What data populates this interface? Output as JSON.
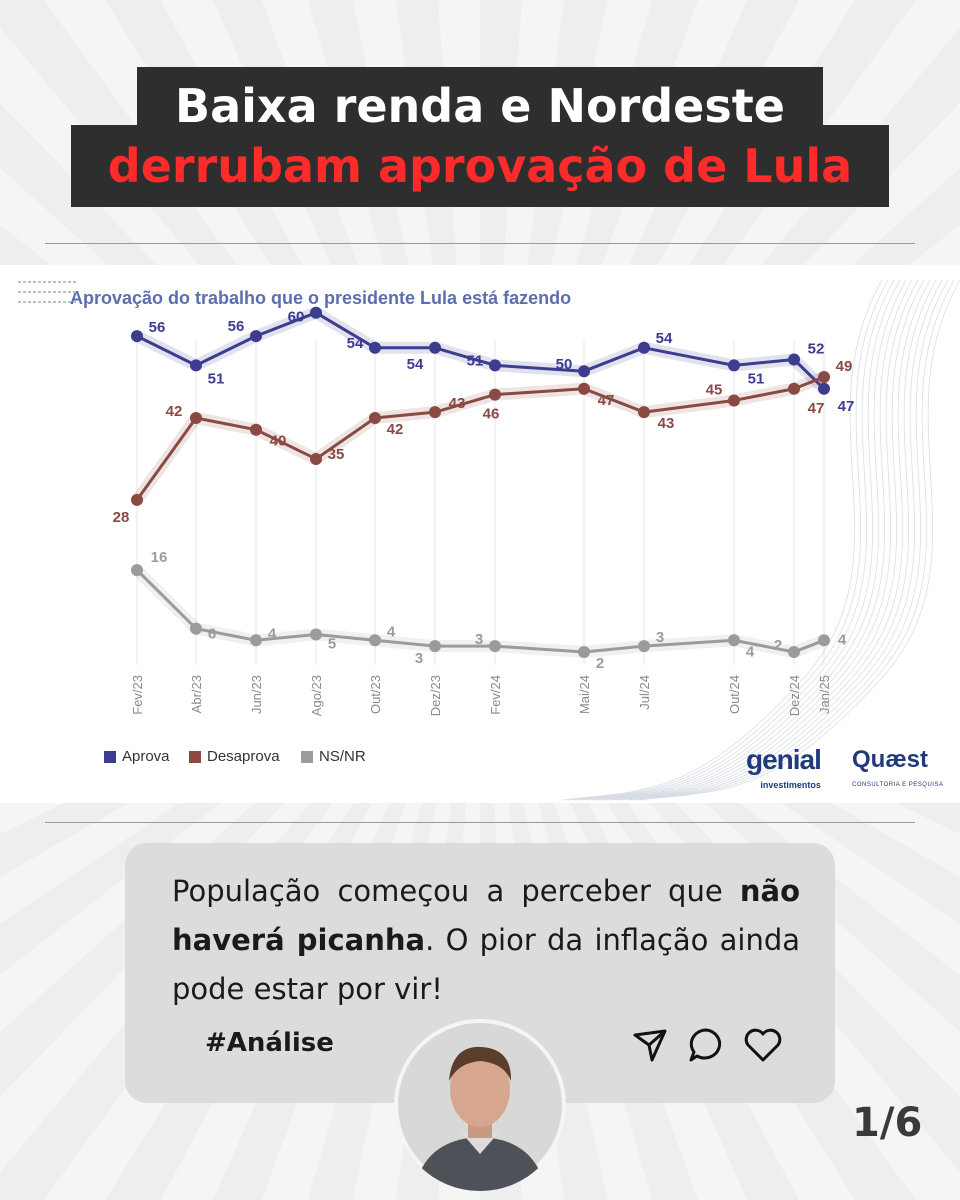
{
  "headline": {
    "line1": "Baixa renda e Nordeste",
    "line2": "derrubam aprovação de Lula"
  },
  "chart_data": {
    "type": "line",
    "title": "Aprovação do trabalho que o presidente Lula está fazendo",
    "x": [
      "Fev/23",
      "Abr/23",
      "Jun/23",
      "Ago/23",
      "Out/23",
      "Dez/23",
      "Fev/24",
      "Mai/24",
      "Jul/24",
      "Out/24",
      "Dez/24",
      "Jan/25"
    ],
    "series": [
      {
        "name": "Aprova",
        "color": "#3d3d8f",
        "values": [
          56,
          51,
          56,
          60,
          54,
          54,
          51,
          50,
          54,
          51,
          52,
          47
        ]
      },
      {
        "name": "Desaprova",
        "color": "#8a4a44",
        "values": [
          28,
          42,
          40,
          35,
          42,
          43,
          46,
          47,
          43,
          45,
          47,
          49
        ]
      },
      {
        "name": "NS/NR",
        "color": "#9b9b9b",
        "values": [
          16,
          6,
          4,
          5,
          4,
          3,
          3,
          2,
          3,
          4,
          2,
          4
        ]
      }
    ],
    "grid": "vertical",
    "legend_position": "bottom-left"
  },
  "legend": [
    {
      "label": "Aprova",
      "color": "#3d3d8f"
    },
    {
      "label": "Desaprova",
      "color": "#8a4a44"
    },
    {
      "label": "NS/NR",
      "color": "#9b9b9b"
    }
  ],
  "logos": {
    "genial": "genial",
    "genial_sub": "investimentos",
    "quaest": "Quæst",
    "quaest_sub": "CONSULTORIA E PESQUISA"
  },
  "post": {
    "text_part1": "População começou a perceber que ",
    "text_bold": "não haverá picanha",
    "text_part2": ". O pior da inflação ainda pode estar por vir!",
    "hashtag": "#Análise"
  },
  "icons": [
    "send-icon",
    "comment-icon",
    "heart-icon"
  ],
  "pager": "1/6"
}
